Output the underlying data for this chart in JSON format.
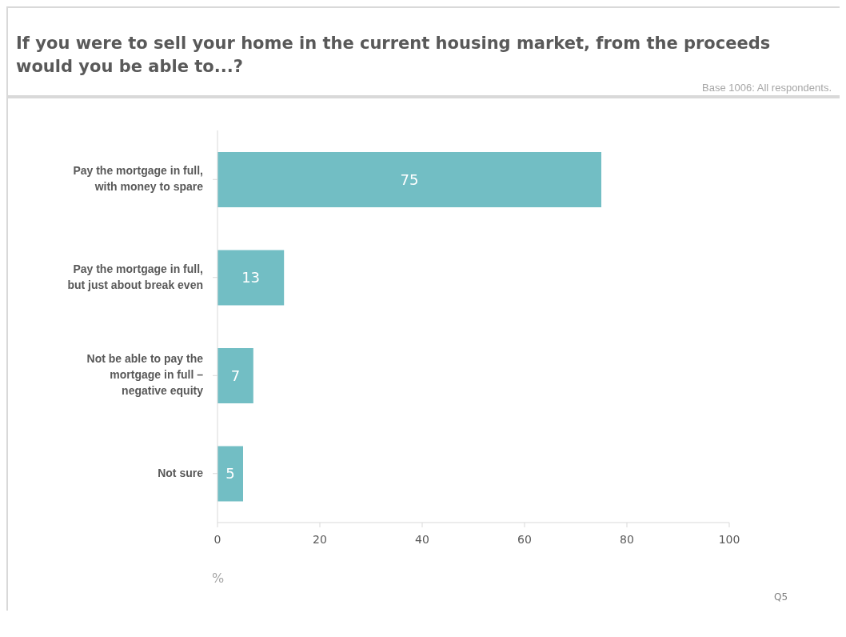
{
  "chart_data": {
    "type": "bar",
    "orientation": "horizontal",
    "title": "If you were to sell your home in the current housing market, from the proceeds would you be able to...?",
    "categories": [
      "Pay the mortgage in full, with money to spare",
      "Pay the mortgage in full, but just about break even",
      "Not be able to pay the mortgage in full – negative equity",
      "Not sure"
    ],
    "values": [
      75,
      13,
      7,
      5
    ],
    "color": "#72bec4",
    "data_labels": true,
    "xlim": [
      0,
      100
    ],
    "xticks": [
      0,
      20,
      40,
      60,
      80,
      100
    ],
    "xlabel": "%",
    "grid": false,
    "annotations": [
      "Base 1006: All respondents.",
      "Q5"
    ]
  }
}
